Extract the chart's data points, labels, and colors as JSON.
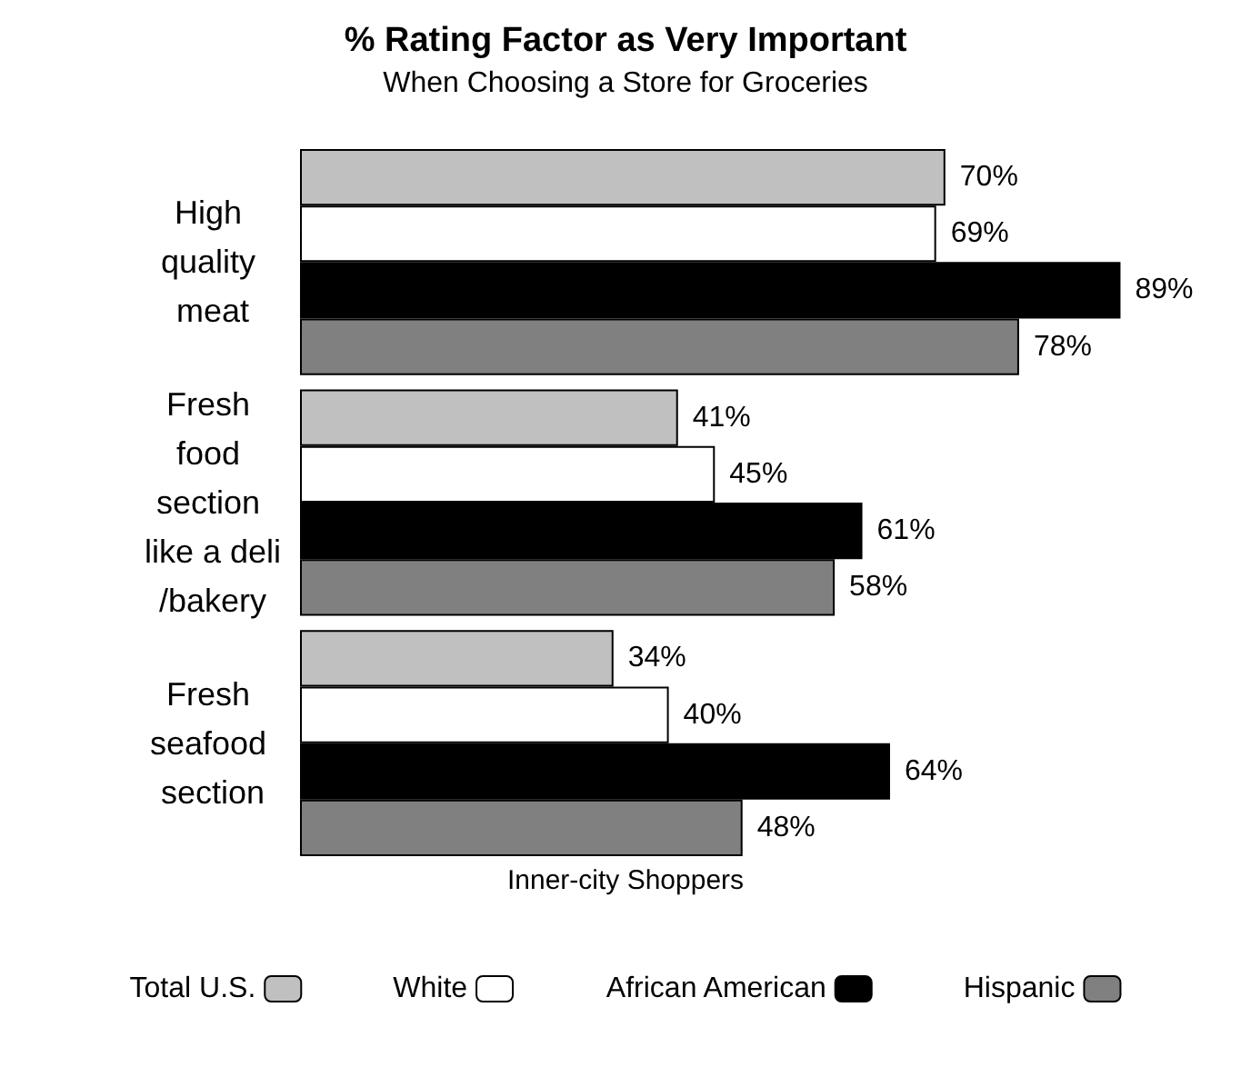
{
  "chart_data": {
    "type": "bar",
    "orientation": "horizontal",
    "title": "% Rating Factor as Very Important",
    "subtitle": "When Choosing a Store for Groceries",
    "legend_title": "Inner-city Shoppers",
    "categories": [
      "High quality meat",
      "Fresh food section like a deli/bakery",
      "Fresh seafood section"
    ],
    "series": [
      {
        "name": "Total U.S.",
        "color": "#c0c0c0",
        "values": [
          70,
          41,
          34
        ],
        "value_labels": [
          "70%",
          "41%",
          "34%"
        ]
      },
      {
        "name": "White",
        "color": "#ffffff",
        "values": [
          69,
          45,
          40
        ],
        "value_labels": [
          "69%",
          "45%",
          "40%"
        ]
      },
      {
        "name": "African American",
        "color": "#000000",
        "values": [
          89,
          61,
          64
        ],
        "value_labels": [
          "89%",
          "61%",
          "64%"
        ]
      },
      {
        "name": "Hispanic",
        "color": "#808080",
        "values": [
          78,
          58,
          48
        ],
        "value_labels": [
          "78%",
          "58%",
          "48%"
        ]
      }
    ],
    "tick_labels": "y",
    "grid": false,
    "legend": "bottom"
  }
}
